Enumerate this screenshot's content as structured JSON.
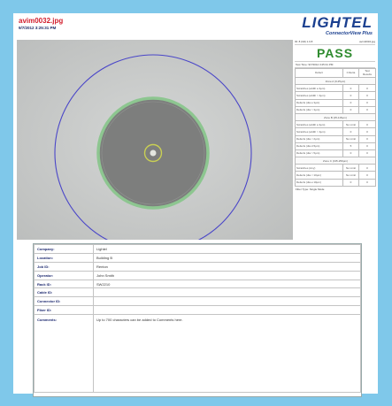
{
  "header": {
    "filename": "avim0032.jpg",
    "datetime": "9/7/2012 3:25:31 PM",
    "brand": "LIGHTEL",
    "product": "ConnectorView Plus"
  },
  "results": {
    "top_left": "ID: 8 (bill) 1.0.8",
    "top_right": "avim0032.jpg",
    "status": "PASS",
    "test_time": "Test Time: 9/7/2012 3:25:31 PM",
    "columns": [
      "Defect",
      "Criteria",
      "Test Results"
    ],
    "zones": [
      {
        "title": "Zone A (0-25µm)",
        "rows": [
          [
            "Scratches (width ≤ 3µm)",
            "0",
            "0"
          ],
          [
            "Scratches (width > 3µm)",
            "0",
            "0"
          ],
          [
            "Defects (dia ≤ 3µm)",
            "0",
            "0"
          ],
          [
            "Defects (dia > 3µm)",
            "0",
            "0"
          ]
        ]
      },
      {
        "title": "Zone B (25-115µm)",
        "rows": [
          [
            "Scratches (width ≤ 3µm)",
            "No Limit",
            "0"
          ],
          [
            "Scratches (width > 3µm)",
            "0",
            "0"
          ],
          [
            "Defects (dia < 2µm)",
            "No Limit",
            "0"
          ],
          [
            "Defects (dia 2-5µm)",
            "5",
            "0"
          ],
          [
            "Defects (dia > 5µm)",
            "0",
            "0"
          ]
        ]
      },
      {
        "title": "Zone C (135-250µm)",
        "rows": [
          [
            "Scratches (Any)",
            "No Limit",
            "0"
          ],
          [
            "Defects (dia < 10µm)",
            "No Limit",
            "0"
          ],
          [
            "Defects (dia ≥ 10µm)",
            "0",
            "0"
          ]
        ]
      }
    ],
    "fiber_type": "Fiber Type: Single Mode"
  },
  "info": {
    "rows": [
      {
        "label": "Company:",
        "value": "Lightel"
      },
      {
        "label": "Location:",
        "value": "Building B"
      },
      {
        "label": "Job ID:",
        "value": "Renton"
      },
      {
        "label": "Operator:",
        "value": "John Smith"
      },
      {
        "label": "Rack ID:",
        "value": "SW2210"
      },
      {
        "label": "Cable ID:",
        "value": ""
      },
      {
        "label": "Connector ID:",
        "value": ""
      },
      {
        "label": "Fiber ID:",
        "value": ""
      }
    ],
    "comments_label": "Comments:",
    "comments_value": "Up to 700 characters can be added to Comments here."
  },
  "colors": {
    "background": "#7fc8ea",
    "pass": "#2e8b2e",
    "brand": "#1a3f8f",
    "filename": "#d21e2d",
    "zone_outer": "#4a46c8",
    "zone_cladding": "#8dc690",
    "zone_core": "#c9cf54"
  }
}
